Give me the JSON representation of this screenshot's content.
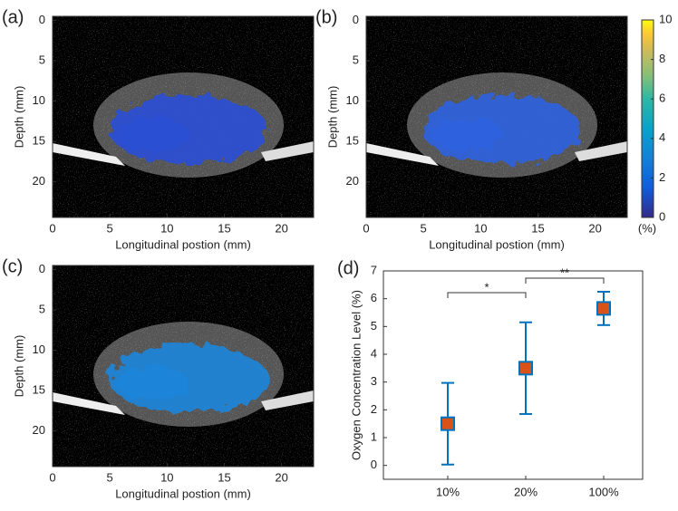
{
  "chart_data": [
    {
      "type": "image",
      "label": "(a)",
      "xlabel": "Longitudinal postion (mm)",
      "ylabel": "Depth (mm)",
      "xlim": [
        0,
        22.8
      ],
      "xticks": [
        0,
        5,
        10,
        15,
        20
      ],
      "ylim": [
        -0.5,
        24.4
      ],
      "yticks": [
        0,
        5,
        10,
        15,
        20
      ],
      "blob": "#2a4fd6"
    },
    {
      "type": "image",
      "label": "(b)",
      "xlabel": "Longitudinal postion (mm)",
      "ylabel": "Depth (mm)",
      "xlim": [
        0,
        22.8
      ],
      "xticks": [
        0,
        5,
        10,
        15,
        20
      ],
      "ylim": [
        -0.5,
        24.4
      ],
      "yticks": [
        0,
        5,
        10,
        15,
        20
      ],
      "blob": "#2f62e0"
    },
    {
      "type": "image",
      "label": "(c)",
      "xlabel": "Longitudinal postion (mm)",
      "ylabel": "Depth (mm)",
      "xlim": [
        0,
        22.8
      ],
      "xticks": [
        0,
        5,
        10,
        15,
        20
      ],
      "ylim": [
        -0.5,
        24.4
      ],
      "yticks": [
        0,
        5,
        10,
        15,
        20
      ],
      "blob": "#1c86dc"
    },
    {
      "type": "colorbar",
      "label": "(%)",
      "ylim": [
        0,
        10
      ],
      "yticks": [
        0,
        2,
        4,
        6,
        8,
        10
      ]
    },
    {
      "type": "errorbar",
      "label": "(d)",
      "ylabel": "Oxygen Concentration Level (%)",
      "categories": [
        "10%",
        "20%",
        "100%"
      ],
      "values": [
        1.5,
        3.5,
        5.65
      ],
      "errors": [
        1.47,
        1.65,
        0.6
      ],
      "ylim": [
        -0.5,
        7
      ],
      "yticks": [
        0,
        1,
        2,
        3,
        4,
        5,
        6,
        7
      ],
      "annotations": [
        "*",
        "**"
      ],
      "color": "#d95319",
      "edgecolor": "#0072bd"
    }
  ]
}
